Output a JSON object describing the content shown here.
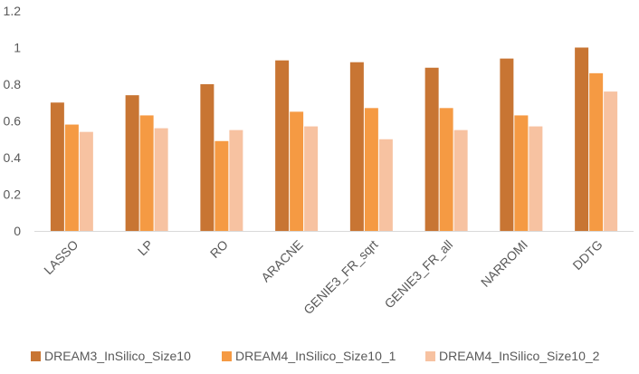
{
  "chart_data": {
    "type": "bar",
    "categories": [
      "LASSO",
      "LP",
      "RO",
      "ARACNE",
      "GENIE3_FR_sqrt",
      "GENIE3_FR_all",
      "NARROMI",
      "DDTG"
    ],
    "series": [
      {
        "name": "DREAM3_InSilico_Size10",
        "color": "#C87533",
        "values": [
          0.7,
          0.74,
          0.8,
          0.93,
          0.92,
          0.89,
          0.94,
          1.0
        ]
      },
      {
        "name": "DREAM4_InSilico_Size10_1",
        "color": "#F59A43",
        "values": [
          0.58,
          0.63,
          0.49,
          0.65,
          0.67,
          0.67,
          0.63,
          0.86
        ]
      },
      {
        "name": "DREAM4_InSilico_Size10_2",
        "color": "#F7C2A1",
        "values": [
          0.54,
          0.56,
          0.55,
          0.57,
          0.5,
          0.55,
          0.57,
          0.76
        ]
      }
    ],
    "ylim": [
      0,
      1.2
    ],
    "yticks": [
      "0",
      "0.2",
      "0.4",
      "0.6",
      "0.8",
      "1",
      "1.2"
    ],
    "grid": false,
    "legend_position": "bottom"
  }
}
